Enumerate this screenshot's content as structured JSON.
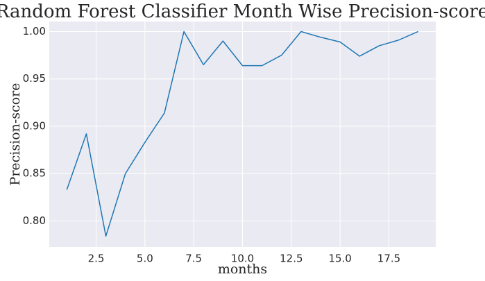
{
  "chart_data": {
    "type": "line",
    "title": "Random Forest Classifier Month Wise Precision-score",
    "xlabel": "months",
    "ylabel": "Precision-score",
    "xlim": [
      0.1,
      19.9
    ],
    "ylim": [
      0.7725,
      1.0106
    ],
    "xticks": [
      2.5,
      5.0,
      7.5,
      10.0,
      12.5,
      15.0,
      17.5
    ],
    "xtick_labels": [
      "2.5",
      "5.0",
      "7.5",
      "10.0",
      "12.5",
      "15.0",
      "17.5"
    ],
    "yticks": [
      0.8,
      0.85,
      0.9,
      0.95,
      1.0
    ],
    "ytick_labels": [
      "0.80",
      "0.85",
      "0.90",
      "0.95",
      "1.00"
    ],
    "grid": true,
    "background_color": "#eaeaf2",
    "grid_color": "#ffffff",
    "series": [
      {
        "color": "#1f77b4",
        "x": [
          1,
          2,
          3,
          4,
          5,
          6,
          7,
          8,
          9,
          10,
          11,
          12,
          13,
          14,
          15,
          16,
          17,
          18,
          19
        ],
        "y": [
          0.833,
          0.892,
          0.784,
          0.85,
          0.883,
          0.914,
          1.0,
          0.965,
          0.99,
          0.964,
          0.964,
          0.975,
          1.0,
          0.994,
          0.989,
          0.974,
          0.985,
          0.991,
          1.0
        ]
      }
    ]
  }
}
